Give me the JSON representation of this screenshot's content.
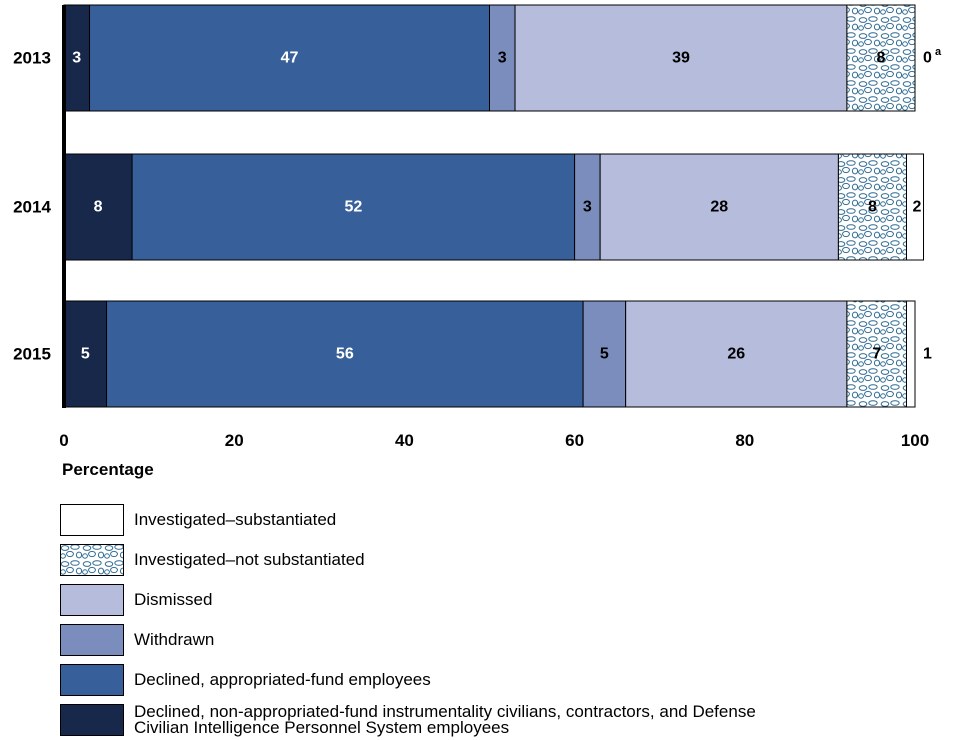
{
  "chart_data": {
    "type": "bar",
    "orientation": "horizontal",
    "stacked": true,
    "categories": [
      "2013",
      "2014",
      "2015"
    ],
    "series": [
      {
        "name": "Declined, non-appropriated-fund instrumentality civilians, contractors, and Defense Civilian Intelligence Personnel System employees",
        "values": [
          3,
          8,
          5
        ],
        "labels": [
          "3",
          "8",
          "5"
        ],
        "color": "#17284a",
        "label_color": "#ffffff",
        "pattern": false
      },
      {
        "name": "Declined, appropriated-fund employees",
        "values": [
          47,
          52,
          56
        ],
        "labels": [
          "47",
          "52",
          "56"
        ],
        "color": "#37609a",
        "label_color": "#ffffff",
        "pattern": false
      },
      {
        "name": "Withdrawn",
        "values": [
          3,
          3,
          5
        ],
        "labels": [
          "3",
          "3",
          "5"
        ],
        "color": "#7a8dbd",
        "label_color": "#000000",
        "pattern": false
      },
      {
        "name": "Dismissed",
        "values": [
          39,
          28,
          26
        ],
        "labels": [
          "39",
          "28",
          "26"
        ],
        "color": "#b6bcdc",
        "label_color": "#000000",
        "pattern": false
      },
      {
        "name": "Investigated–not substantiated",
        "values": [
          8,
          8,
          7
        ],
        "labels": [
          "8",
          "8",
          "7"
        ],
        "color": "#ffffff",
        "label_color": "#000000",
        "pattern": true
      },
      {
        "name": "Investigated–substantiated",
        "values": [
          0,
          2,
          1
        ],
        "labels": [
          "0",
          "2",
          "1"
        ],
        "color": "#ffffff",
        "label_color": "#000000",
        "pattern": false
      }
    ],
    "footnote_markers": [
      "a",
      "",
      ""
    ],
    "xlabel": "Percentage",
    "xlim": [
      0,
      100
    ],
    "xticks": [
      0,
      20,
      40,
      60,
      80,
      100
    ],
    "grid": false,
    "legend_position": "bottom"
  },
  "legend_order": [
    5,
    4,
    3,
    2,
    1,
    0
  ]
}
